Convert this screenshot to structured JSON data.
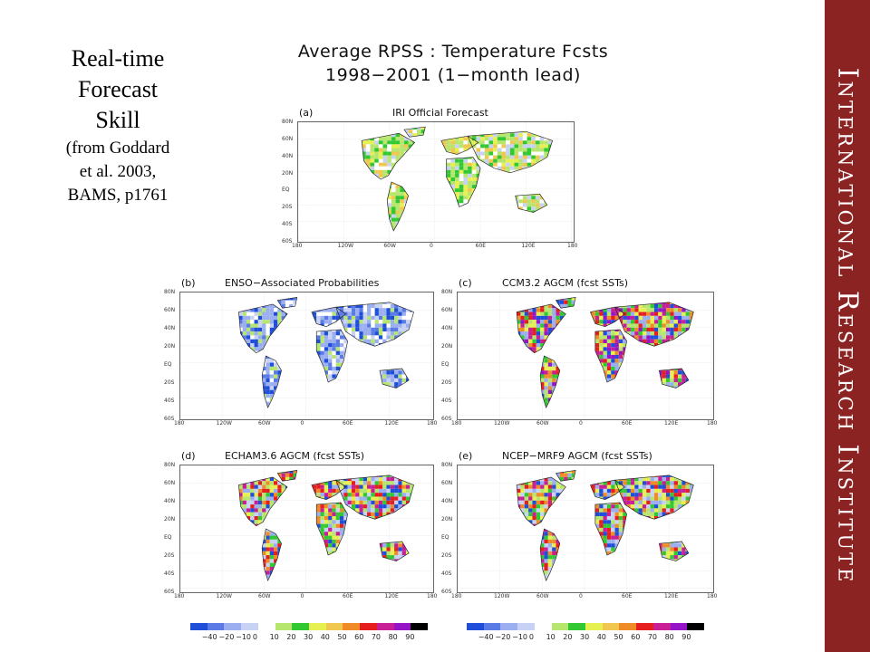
{
  "slide": {
    "title_lines": [
      "Real-time",
      "Forecast",
      "Skill"
    ],
    "citation_lines": [
      "(from Goddard",
      "et al. 2003,",
      "BAMS,  p1761"
    ],
    "figure_title_lines": [
      "Average RPSS : Temperature Fcsts",
      "1998−2001   (1−month lead)"
    ],
    "sidebar_text": "International Research Institute",
    "sidebar_color": "#8c2323"
  },
  "panels": [
    {
      "label": "(a)",
      "title": "IRI Official Forecast",
      "scheme": "green"
    },
    {
      "label": "(b)",
      "title": "ENSO−Associated Probabilities",
      "scheme": "blue"
    },
    {
      "label": "(c)",
      "title": "CCM3.2 AGCM  (fcst SSTs)",
      "scheme": "mixed_c"
    },
    {
      "label": "(d)",
      "title": "ECHAM3.6 AGCM  (fcst SSTs)",
      "scheme": "mixed_d"
    },
    {
      "label": "(e)",
      "title": "NCEP−MRF9 AGCM  (fcst SSTs)",
      "scheme": "mixed_e"
    }
  ],
  "map_axes": {
    "lat_labels": [
      "80N",
      "60N",
      "40N",
      "20N",
      "EQ",
      "20S",
      "40S",
      "60S"
    ],
    "lon_labels": [
      "180",
      "120W",
      "60W",
      "0",
      "60E",
      "120E",
      "180"
    ]
  },
  "colorbar": {
    "ticks": [
      "−40",
      "−20",
      "−10",
      "0",
      "10",
      "20",
      "30",
      "40",
      "50",
      "60",
      "70",
      "80",
      "90"
    ],
    "colors": [
      "#1f4fd8",
      "#5a7be6",
      "#9aaef0",
      "#c8d2f4",
      "#ffffff",
      "#b6e66e",
      "#32c832",
      "#e6f050",
      "#f0c850",
      "#f08c28",
      "#e61e1e",
      "#c81e96",
      "#9614c8",
      "#000000"
    ]
  }
}
